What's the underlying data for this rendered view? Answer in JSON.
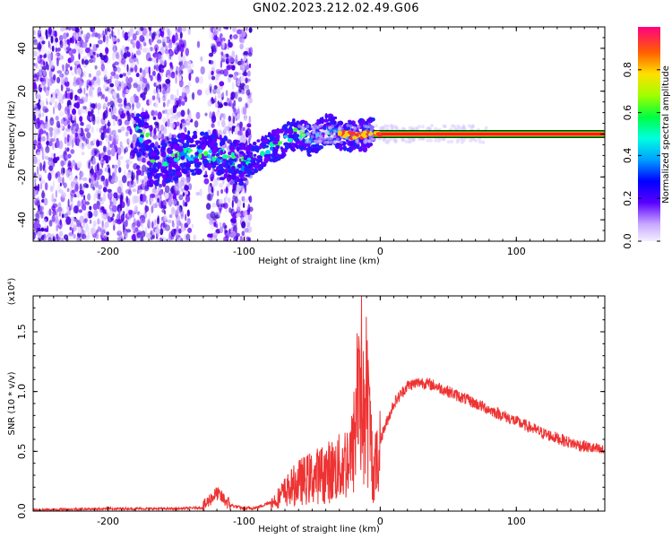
{
  "title": "GN02.2023.212.02.49.G06",
  "chart_data": [
    {
      "type": "heatmap",
      "xlabel": "Height of straight line (km)",
      "ylabel": "Frequency (Hz)",
      "xlim": [
        -255,
        165
      ],
      "ylim": [
        -50,
        50
      ],
      "xticks": [
        -200,
        -100,
        0,
        100
      ],
      "yticks": [
        -40,
        -20,
        0,
        20,
        40
      ],
      "colorbar": {
        "label": "Normalized spectral amplitude",
        "range": [
          0,
          1
        ],
        "ticks": [
          "0.0",
          "0.2",
          "0.4",
          "0.6",
          "0.8"
        ]
      },
      "trend": [
        {
          "x": -170,
          "y": -15
        },
        {
          "x": -140,
          "y": -9
        },
        {
          "x": -120,
          "y": -10
        },
        {
          "x": -100,
          "y": -14
        },
        {
          "x": -85,
          "y": -8
        },
        {
          "x": -70,
          "y": -3
        },
        {
          "x": -60,
          "y": 1
        },
        {
          "x": -50,
          "y": -4
        },
        {
          "x": -40,
          "y": 3
        },
        {
          "x": -30,
          "y": 0
        },
        {
          "x": -20,
          "y": -1
        },
        {
          "x": -10,
          "y": 0
        },
        {
          "x": 0,
          "y": 0
        },
        {
          "x": 165,
          "y": 0
        }
      ],
      "grid": false,
      "colors": {
        "low": "#e6dcff",
        "mid": "#6a00ff",
        "high": "#ff0033"
      }
    },
    {
      "type": "line",
      "xlabel": "Height of straight line (km)",
      "ylabel": "SNR (10 * v/v)",
      "y_multiplier": "(x10⁴)",
      "xlim": [
        -255,
        165
      ],
      "ylim": [
        0,
        1.8
      ],
      "xticks": [
        -200,
        -100,
        0,
        100
      ],
      "yticks": [
        "0.0",
        "0.5",
        "1.0",
        "1.5"
      ],
      "series": [
        {
          "x": [
            -255,
            -200,
            -150,
            -130,
            -125,
            -120,
            -115,
            -110,
            -100,
            -90,
            -80,
            -70,
            -60,
            -50,
            -40,
            -30,
            -20,
            -15,
            -12,
            -10,
            -5,
            0,
            10,
            20,
            30,
            40,
            50,
            60,
            80,
            100,
            120,
            140,
            165
          ],
          "y": [
            0.01,
            0.02,
            0.02,
            0.03,
            0.1,
            0.15,
            0.1,
            0.05,
            0.02,
            0.03,
            0.08,
            0.2,
            0.3,
            0.35,
            0.4,
            0.45,
            0.6,
            1.6,
            0.9,
            1.2,
            0.4,
            0.6,
            0.9,
            1.05,
            1.08,
            1.05,
            1.0,
            0.95,
            0.85,
            0.75,
            0.65,
            0.57,
            0.5
          ],
          "color": "#ee3333"
        }
      ],
      "grid": false
    }
  ]
}
